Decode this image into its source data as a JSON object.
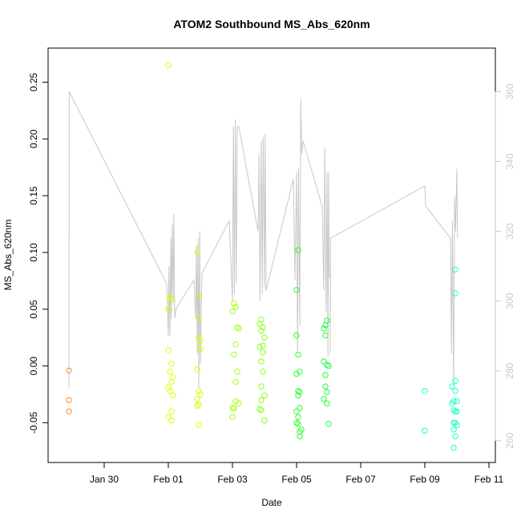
{
  "chart_data": {
    "type": "scatter",
    "title": "ATOM2 Southbound MS_Abs_620nm",
    "xlabel": "Date",
    "ylabel": "MS_Abs_620nm",
    "x_ticks": [
      "Jan 30",
      "Feb 01",
      "Feb 03",
      "Feb 05",
      "Feb 07",
      "Feb 09",
      "Feb 11"
    ],
    "y_ticks": [
      "-0.05",
      "0.00",
      "0.05",
      "0.10",
      "0.15",
      "0.20",
      "0.25"
    ],
    "y2_ticks": [
      "260",
      "280",
      "300",
      "320",
      "340",
      "360"
    ],
    "xlim_days": [
      28.25,
      42.2
    ],
    "ylim": [
      -0.085,
      0.28
    ],
    "y2lim": [
      253.75,
      372.5
    ],
    "grid": false,
    "colors": {
      "axis": "#000000",
      "secondary_line": "#c8c8c8",
      "right_ticks": "#c8c8c8"
    },
    "points": [
      {
        "x": 28.9,
        "y": -0.004,
        "c": "#ff8c2a"
      },
      {
        "x": 28.9,
        "y": -0.03,
        "c": "#ff8c2a"
      },
      {
        "x": 28.9,
        "y": -0.04,
        "c": "#ff8c2a"
      },
      {
        "x": 32.0,
        "y": 0.265,
        "c": "#e0ff00"
      },
      {
        "x": 32.05,
        "y": 0.061,
        "c": "#e0ff00"
      },
      {
        "x": 32.1,
        "y": 0.058,
        "c": "#e0ff00"
      },
      {
        "x": 32.0,
        "y": 0.05,
        "c": "#e0ff00"
      },
      {
        "x": 32.0,
        "y": 0.014,
        "c": "#e0ff00"
      },
      {
        "x": 32.1,
        "y": 0.002,
        "c": "#e0ff00"
      },
      {
        "x": 32.05,
        "y": -0.005,
        "c": "#e0ff00"
      },
      {
        "x": 32.15,
        "y": -0.01,
        "c": "#e0ff00"
      },
      {
        "x": 32.1,
        "y": -0.014,
        "c": "#e0ff00"
      },
      {
        "x": 32.0,
        "y": -0.019,
        "c": "#e0ff00"
      },
      {
        "x": 32.05,
        "y": -0.022,
        "c": "#e0ff00"
      },
      {
        "x": 32.15,
        "y": -0.026,
        "c": "#e0ff00"
      },
      {
        "x": 32.1,
        "y": -0.04,
        "c": "#e0ff00"
      },
      {
        "x": 32.0,
        "y": -0.045,
        "c": "#e0ff00"
      },
      {
        "x": 32.1,
        "y": -0.048,
        "c": "#e0ff00"
      },
      {
        "x": 32.9,
        "y": 0.1,
        "c": "#d4ff0a"
      },
      {
        "x": 32.95,
        "y": 0.061,
        "c": "#d4ff0a"
      },
      {
        "x": 32.95,
        "y": 0.042,
        "c": "#d4ff0a"
      },
      {
        "x": 32.95,
        "y": 0.025,
        "c": "#d4ff0a"
      },
      {
        "x": 33.0,
        "y": 0.022,
        "c": "#d4ff0a"
      },
      {
        "x": 33.0,
        "y": 0.015,
        "c": "#d4ff0a"
      },
      {
        "x": 32.9,
        "y": -0.003,
        "c": "#d4ff0a"
      },
      {
        "x": 32.95,
        "y": -0.022,
        "c": "#d4ff0a"
      },
      {
        "x": 33.0,
        "y": -0.025,
        "c": "#d4ff0a"
      },
      {
        "x": 32.9,
        "y": -0.029,
        "c": "#d4ff0a"
      },
      {
        "x": 32.95,
        "y": -0.034,
        "c": "#d4ff0a"
      },
      {
        "x": 32.9,
        "y": -0.035,
        "c": "#d4ff0a"
      },
      {
        "x": 32.95,
        "y": -0.052,
        "c": "#d4ff0a"
      },
      {
        "x": 34.05,
        "y": 0.055,
        "c": "#a6ff14"
      },
      {
        "x": 34.1,
        "y": 0.052,
        "c": "#a6ff14"
      },
      {
        "x": 34.0,
        "y": 0.048,
        "c": "#a6ff14"
      },
      {
        "x": 34.15,
        "y": 0.034,
        "c": "#a6ff14"
      },
      {
        "x": 34.2,
        "y": 0.033,
        "c": "#a6ff14"
      },
      {
        "x": 34.1,
        "y": 0.019,
        "c": "#a6ff14"
      },
      {
        "x": 34.05,
        "y": 0.01,
        "c": "#a6ff14"
      },
      {
        "x": 34.15,
        "y": -0.005,
        "c": "#a6ff14"
      },
      {
        "x": 34.1,
        "y": -0.014,
        "c": "#a6ff14"
      },
      {
        "x": 34.1,
        "y": -0.031,
        "c": "#a6ff14"
      },
      {
        "x": 34.2,
        "y": -0.033,
        "c": "#a6ff14"
      },
      {
        "x": 34.0,
        "y": -0.037,
        "c": "#a6ff14"
      },
      {
        "x": 34.05,
        "y": -0.037,
        "c": "#a6ff14"
      },
      {
        "x": 34.0,
        "y": -0.045,
        "c": "#a6ff14"
      },
      {
        "x": 34.9,
        "y": 0.041,
        "c": "#8cff1e"
      },
      {
        "x": 34.85,
        "y": 0.037,
        "c": "#8cff1e"
      },
      {
        "x": 34.95,
        "y": 0.034,
        "c": "#8cff1e"
      },
      {
        "x": 34.9,
        "y": 0.031,
        "c": "#8cff1e"
      },
      {
        "x": 35.0,
        "y": 0.025,
        "c": "#8cff1e"
      },
      {
        "x": 34.95,
        "y": 0.018,
        "c": "#8cff1e"
      },
      {
        "x": 34.85,
        "y": 0.017,
        "c": "#8cff1e"
      },
      {
        "x": 34.95,
        "y": 0.012,
        "c": "#8cff1e"
      },
      {
        "x": 34.9,
        "y": 0.004,
        "c": "#8cff1e"
      },
      {
        "x": 34.95,
        "y": -0.005,
        "c": "#8cff1e"
      },
      {
        "x": 34.9,
        "y": -0.018,
        "c": "#8cff1e"
      },
      {
        "x": 35.0,
        "y": -0.026,
        "c": "#8cff1e"
      },
      {
        "x": 34.9,
        "y": -0.03,
        "c": "#8cff1e"
      },
      {
        "x": 34.85,
        "y": -0.038,
        "c": "#8cff1e"
      },
      {
        "x": 34.9,
        "y": -0.039,
        "c": "#8cff1e"
      },
      {
        "x": 35.0,
        "y": -0.048,
        "c": "#8cff1e"
      },
      {
        "x": 36.05,
        "y": 0.102,
        "c": "#2eff2e"
      },
      {
        "x": 36.0,
        "y": 0.067,
        "c": "#2eff2e"
      },
      {
        "x": 36.0,
        "y": 0.027,
        "c": "#2eff2e"
      },
      {
        "x": 36.05,
        "y": 0.01,
        "c": "#2eff2e"
      },
      {
        "x": 36.1,
        "y": -0.005,
        "c": "#2eff2e"
      },
      {
        "x": 36.0,
        "y": -0.007,
        "c": "#2eff2e"
      },
      {
        "x": 36.05,
        "y": -0.022,
        "c": "#2eff2e"
      },
      {
        "x": 36.1,
        "y": -0.023,
        "c": "#2eff2e"
      },
      {
        "x": 36.05,
        "y": -0.026,
        "c": "#2eff2e"
      },
      {
        "x": 36.1,
        "y": -0.037,
        "c": "#2eff2e"
      },
      {
        "x": 36.0,
        "y": -0.04,
        "c": "#2eff2e"
      },
      {
        "x": 36.05,
        "y": -0.045,
        "c": "#2eff2e"
      },
      {
        "x": 36.0,
        "y": -0.05,
        "c": "#2eff2e"
      },
      {
        "x": 36.05,
        "y": -0.051,
        "c": "#2eff2e"
      },
      {
        "x": 36.15,
        "y": -0.056,
        "c": "#2eff2e"
      },
      {
        "x": 36.1,
        "y": -0.058,
        "c": "#2eff2e"
      },
      {
        "x": 36.1,
        "y": -0.062,
        "c": "#2eff2e"
      },
      {
        "x": 36.95,
        "y": 0.04,
        "c": "#1aff3c"
      },
      {
        "x": 36.9,
        "y": 0.036,
        "c": "#1aff3c"
      },
      {
        "x": 36.85,
        "y": 0.033,
        "c": "#1aff3c"
      },
      {
        "x": 36.9,
        "y": 0.027,
        "c": "#1aff3c"
      },
      {
        "x": 36.85,
        "y": 0.004,
        "c": "#1aff3c"
      },
      {
        "x": 36.95,
        "y": 0.001,
        "c": "#1aff3c"
      },
      {
        "x": 37.0,
        "y": 0.0,
        "c": "#1aff3c"
      },
      {
        "x": 36.9,
        "y": -0.008,
        "c": "#1aff3c"
      },
      {
        "x": 36.9,
        "y": -0.018,
        "c": "#1aff3c"
      },
      {
        "x": 36.95,
        "y": -0.023,
        "c": "#1aff3c"
      },
      {
        "x": 36.85,
        "y": -0.029,
        "c": "#1aff3c"
      },
      {
        "x": 36.95,
        "y": -0.033,
        "c": "#1aff3c"
      },
      {
        "x": 37.0,
        "y": -0.051,
        "c": "#1aff3c"
      },
      {
        "x": 40.0,
        "y": -0.022,
        "c": "#14ffaa"
      },
      {
        "x": 40.0,
        "y": -0.057,
        "c": "#14ffaa"
      },
      {
        "x": 40.95,
        "y": 0.085,
        "c": "#1effc8"
      },
      {
        "x": 40.95,
        "y": 0.064,
        "c": "#1effc8"
      },
      {
        "x": 40.95,
        "y": -0.013,
        "c": "#1effc8"
      },
      {
        "x": 40.85,
        "y": -0.018,
        "c": "#1effc8"
      },
      {
        "x": 40.95,
        "y": -0.022,
        "c": "#1effc8"
      },
      {
        "x": 40.9,
        "y": -0.031,
        "c": "#1effc8"
      },
      {
        "x": 41.0,
        "y": -0.031,
        "c": "#1effc8"
      },
      {
        "x": 40.85,
        "y": -0.033,
        "c": "#1effc8"
      },
      {
        "x": 40.9,
        "y": -0.039,
        "c": "#1effc8"
      },
      {
        "x": 40.95,
        "y": -0.04,
        "c": "#1effc8"
      },
      {
        "x": 41.0,
        "y": -0.04,
        "c": "#1effc8"
      },
      {
        "x": 40.9,
        "y": -0.05,
        "c": "#1effc8"
      },
      {
        "x": 40.95,
        "y": -0.05,
        "c": "#1effc8"
      },
      {
        "x": 41.0,
        "y": -0.052,
        "c": "#1effc8"
      },
      {
        "x": 40.9,
        "y": -0.056,
        "c": "#1effc8"
      },
      {
        "x": 40.95,
        "y": -0.062,
        "c": "#1effc8"
      },
      {
        "x": 40.9,
        "y": -0.072,
        "c": "#1effc8"
      }
    ],
    "secondary_line": [
      [
        28.9,
        275
      ],
      [
        28.91,
        360
      ],
      [
        31.95,
        305
      ],
      [
        32.0,
        290
      ],
      [
        32.02,
        310
      ],
      [
        32.05,
        290
      ],
      [
        32.08,
        318
      ],
      [
        32.1,
        295
      ],
      [
        32.12,
        322
      ],
      [
        32.15,
        300
      ],
      [
        32.17,
        325
      ],
      [
        32.2,
        295
      ],
      [
        32.25,
        298
      ],
      [
        32.8,
        306
      ],
      [
        32.85,
        295
      ],
      [
        32.88,
        316
      ],
      [
        32.9,
        285
      ],
      [
        32.93,
        318
      ],
      [
        32.95,
        275
      ],
      [
        32.98,
        320
      ],
      [
        33.0,
        282
      ],
      [
        33.05,
        308
      ],
      [
        33.9,
        323
      ],
      [
        34.0,
        300
      ],
      [
        34.03,
        350
      ],
      [
        34.06,
        302
      ],
      [
        34.09,
        352
      ],
      [
        34.12,
        305
      ],
      [
        34.15,
        350
      ],
      [
        34.2,
        350
      ],
      [
        34.8,
        320
      ],
      [
        34.83,
        342
      ],
      [
        34.86,
        300
      ],
      [
        34.9,
        346
      ],
      [
        34.93,
        302
      ],
      [
        34.96,
        347
      ],
      [
        35.0,
        304
      ],
      [
        35.02,
        348
      ],
      [
        35.05,
        303
      ],
      [
        35.9,
        335
      ],
      [
        35.95,
        306
      ],
      [
        36.0,
        337
      ],
      [
        36.03,
        285
      ],
      [
        36.06,
        338
      ],
      [
        36.1,
        293
      ],
      [
        36.13,
        358
      ],
      [
        36.16,
        342
      ],
      [
        36.2,
        346
      ],
      [
        36.8,
        327
      ],
      [
        36.85,
        303
      ],
      [
        36.88,
        344
      ],
      [
        36.92,
        297
      ],
      [
        36.95,
        337
      ],
      [
        36.98,
        284
      ],
      [
        37.0,
        337
      ],
      [
        37.02,
        307
      ],
      [
        37.05,
        307
      ],
      [
        37.05,
        285
      ],
      [
        37.06,
        318
      ],
      [
        40.0,
        333
      ],
      [
        40.02,
        328
      ],
      [
        40.05,
        327
      ],
      [
        40.8,
        318
      ],
      [
        40.83,
        285
      ],
      [
        40.86,
        323
      ],
      [
        40.9,
        276
      ],
      [
        40.93,
        330
      ],
      [
        40.96,
        320
      ],
      [
        41.0,
        338
      ],
      [
        41.02,
        318
      ]
    ]
  }
}
